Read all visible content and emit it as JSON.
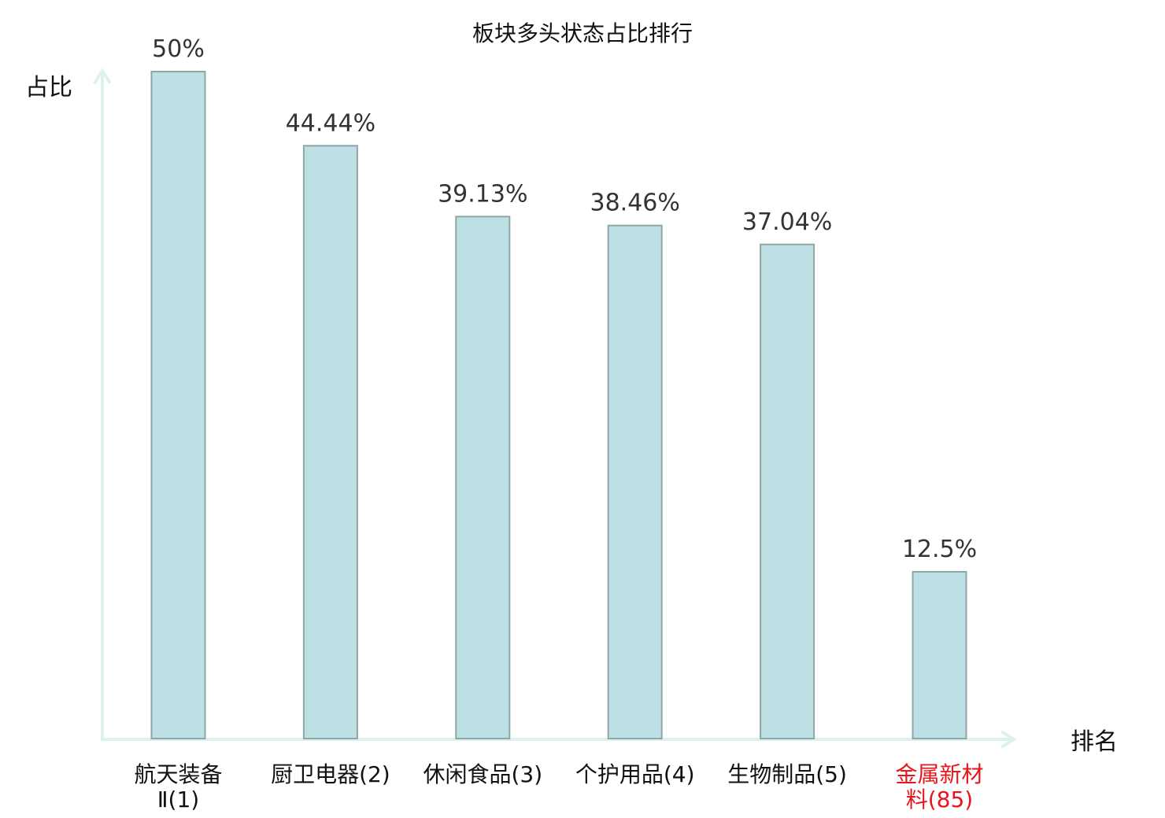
{
  "chart_data": {
    "type": "bar",
    "title": "板块多头状态占比排行",
    "ylabel": "占比",
    "xlabel": "排名",
    "ylim": [
      0,
      50
    ],
    "categories": [
      {
        "name": "航天装备Ⅱ",
        "rank": "(1)",
        "lines": [
          "航天装备",
          "Ⅱ(1)"
        ],
        "highlight": false
      },
      {
        "name": "厨卫电器",
        "rank": "(2)",
        "lines": [
          "厨卫电器(2)"
        ],
        "highlight": false
      },
      {
        "name": "休闲食品",
        "rank": "(3)",
        "lines": [
          "休闲食品(3)"
        ],
        "highlight": false
      },
      {
        "name": "个护用品",
        "rank": "(4)",
        "lines": [
          "个护用品(4)"
        ],
        "highlight": false
      },
      {
        "name": "生物制品",
        "rank": "(5)",
        "lines": [
          "生物制品(5)"
        ],
        "highlight": false
      },
      {
        "name": "金属新材料",
        "rank": "(85)",
        "lines": [
          "金属新材",
          "料(85)"
        ],
        "highlight": true
      }
    ],
    "values": [
      50,
      44.44,
      39.13,
      38.46,
      37.04,
      12.5
    ],
    "value_labels": [
      "50%",
      "44.44%",
      "39.13%",
      "38.46%",
      "37.04%",
      "12.5%"
    ],
    "grid": false,
    "colors": {
      "bar_fill": "#bce0e3",
      "bar_stroke": "#8fa6a8",
      "axis": "#dff1ef",
      "highlight_text": "#e8161c",
      "normal_text": "#111111"
    }
  }
}
